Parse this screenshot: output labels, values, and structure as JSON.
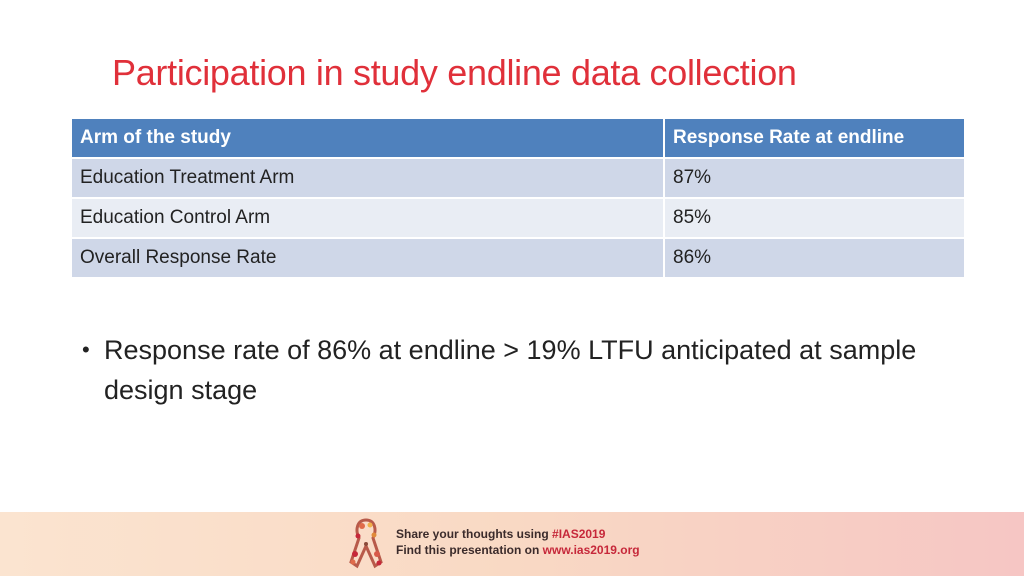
{
  "slide": {
    "title": "Participation in study endline data collection"
  },
  "table": {
    "headers": [
      "Arm of the study",
      "Response Rate at endline"
    ],
    "rows": [
      [
        "Education Treatment Arm",
        "87%"
      ],
      [
        "Education Control Arm",
        "85%"
      ],
      [
        "Overall Response Rate",
        "86%"
      ]
    ]
  },
  "bullets": [
    "Response rate of 86% at endline > 19% LTFU anticipated at sample design stage"
  ],
  "footer": {
    "line1_prefix": "Share your thoughts using ",
    "line1_accent": "#IAS2019",
    "line2_prefix": "Find this presentation on ",
    "line2_accent": "www.ias2019.org",
    "logo_icon": "ias-ribbon-logo-icon"
  },
  "colors": {
    "title": "#e0303a",
    "header_bg": "#4f81bd",
    "row_dark": "#cfd7e8",
    "row_light": "#e9edf4",
    "footer_accent": "#c6283a"
  }
}
